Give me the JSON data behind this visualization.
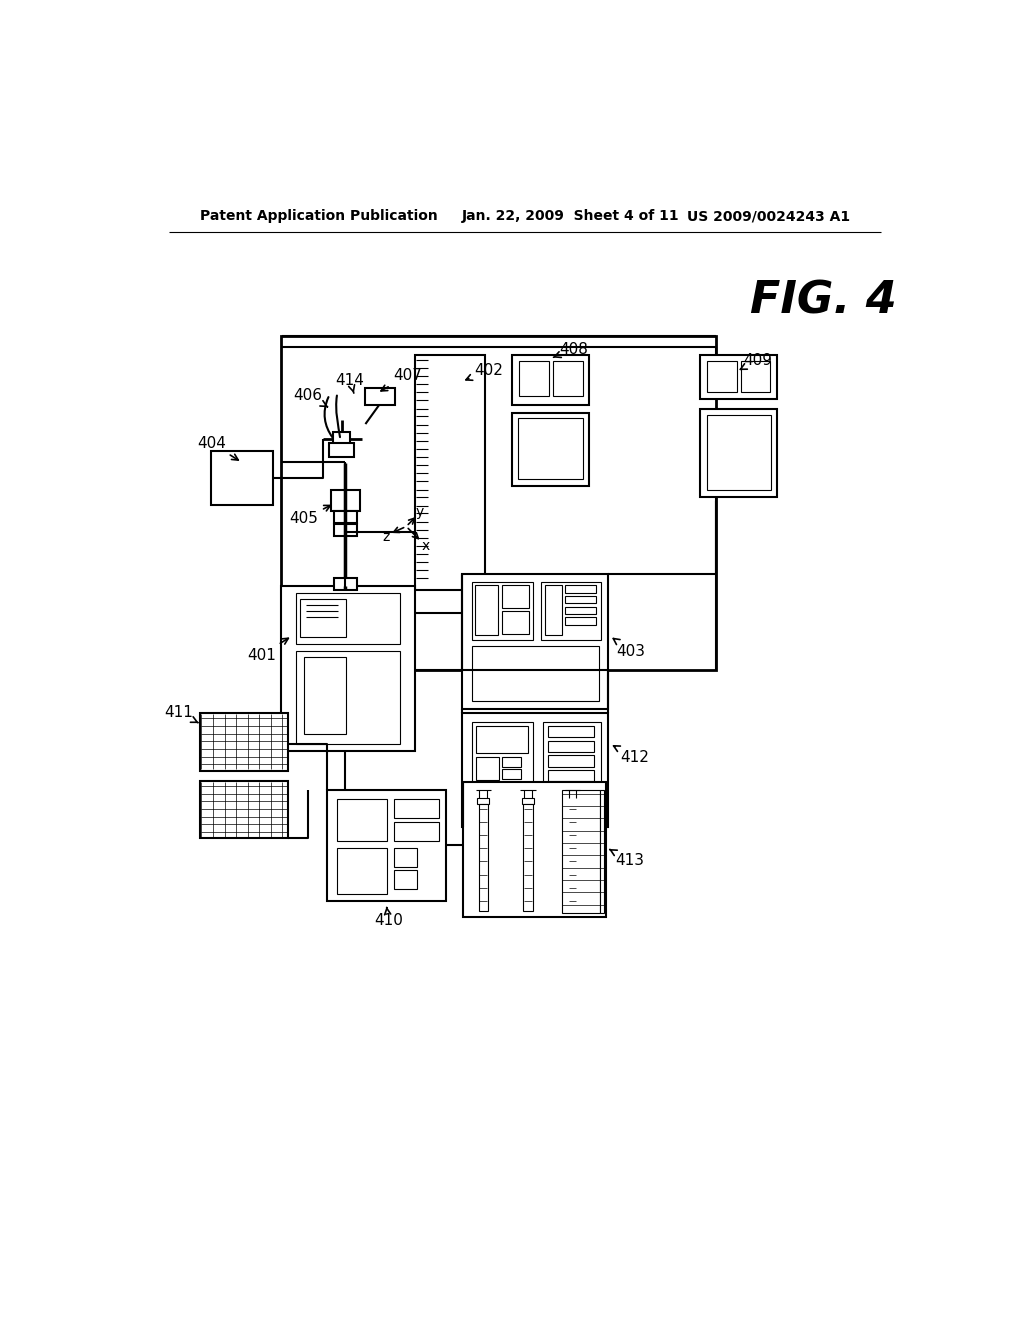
{
  "background": "#ffffff",
  "header_left": "Patent Application Publication",
  "header_mid": "Jan. 22, 2009  Sheet 4 of 11",
  "header_right": "US 2009/0024243 A1",
  "fig_label": "FIG. 4"
}
